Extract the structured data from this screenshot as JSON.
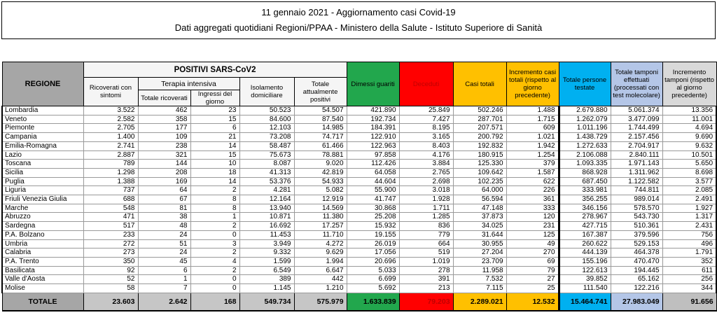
{
  "title": {
    "line1": "11 gennaio 2021 - Aggiornamento casi Covid-19",
    "line2": "Dati aggregati quotidiani Regioni/PPAA - Ministero della Salute - Istituto Superiore di Sanità"
  },
  "colors": {
    "green": "#22a74d",
    "red": "#ff0000",
    "dark-red": "#c00000",
    "yellow": "#ffc000",
    "cyan": "#00b0f0",
    "periwinkle": "#b4c6e7",
    "gray-light": "#d9d9d9",
    "gray-mid": "#a6a6a6",
    "gray-head": "#f5f5f5"
  },
  "table": {
    "region_header": "REGIONE",
    "group_positivi": "POSITIVI SARS-CoV2",
    "group_terapia": "Terapia intensiva",
    "cols": {
      "ricoverati": "Ricoverati con sintomi",
      "ti_totale": "Totale ricoverati",
      "ti_ingressi": "Ingressi del giorno",
      "isolamento": "Isolamento domiciliare",
      "attualmente_positivi": "Totale attualmente positivi",
      "dimessi": "Dimessi guariti",
      "deceduti": "Deceduti",
      "casi_totali": "Casi totali",
      "incremento_casi": "Incremento casi totali (rispetto al giorno precedente)",
      "persone_testate": "Totale persone testate",
      "tamponi": "Totale tamponi effettuati (processati con test molecolare)",
      "incremento_tamponi": "Incremento tamponi (rispetto al giorno precedente)"
    },
    "col_keys": [
      "ricoverati-sintomi",
      "ti-totale",
      "ti-ingressi",
      "isolamento",
      "attualmente-positivi",
      "dimessi-guariti",
      "deceduti",
      "casi-totali",
      "incremento-casi",
      "persone-testate",
      "tamponi",
      "incremento-tamponi"
    ],
    "rows": [
      {
        "regione": "Lombardia",
        "valori": [
          "3.522",
          "462",
          "23",
          "50.523",
          "54.507",
          "421.890",
          "25.849",
          "502.246",
          "1.488",
          "2.679.880",
          "5.061.374",
          "13.356"
        ]
      },
      {
        "regione": "Veneto",
        "valori": [
          "2.582",
          "358",
          "15",
          "84.600",
          "87.540",
          "192.734",
          "7.427",
          "287.701",
          "1.715",
          "1.262.079",
          "3.477.099",
          "11.001"
        ]
      },
      {
        "regione": "Piemonte",
        "valori": [
          "2.705",
          "177",
          "6",
          "12.103",
          "14.985",
          "184.391",
          "8.195",
          "207.571",
          "609",
          "1.011.196",
          "1.744.499",
          "4.694"
        ]
      },
      {
        "regione": "Campania",
        "valori": [
          "1.400",
          "109",
          "21",
          "73.208",
          "74.717",
          "122.910",
          "3.165",
          "200.792",
          "1.021",
          "1.438.729",
          "2.157.456",
          "9.690"
        ]
      },
      {
        "regione": "Emilia-Romagna",
        "valori": [
          "2.741",
          "238",
          "14",
          "58.487",
          "61.466",
          "122.963",
          "8.403",
          "192.832",
          "1.942",
          "1.272.633",
          "2.704.917",
          "9.632"
        ]
      },
      {
        "regione": "Lazio",
        "valori": [
          "2.887",
          "321",
          "15",
          "75.673",
          "78.881",
          "97.858",
          "4.176",
          "180.915",
          "1.254",
          "2.106.088",
          "2.840.111",
          "10.501"
        ]
      },
      {
        "regione": "Toscana",
        "valori": [
          "789",
          "144",
          "10",
          "8.087",
          "9.020",
          "112.426",
          "3.884",
          "125.330",
          "379",
          "1.093.335",
          "1.971.143",
          "5.650"
        ]
      },
      {
        "regione": "Sicilia",
        "valori": [
          "1.298",
          "208",
          "18",
          "41.313",
          "42.819",
          "64.058",
          "2.765",
          "109.642",
          "1.587",
          "868.928",
          "1.311.962",
          "8.698"
        ]
      },
      {
        "regione": "Puglia",
        "valori": [
          "1.388",
          "169",
          "14",
          "53.376",
          "54.933",
          "44.604",
          "2.698",
          "102.235",
          "622",
          "687.450",
          "1.122.582",
          "3.577"
        ]
      },
      {
        "regione": "Liguria",
        "valori": [
          "737",
          "64",
          "2",
          "4.281",
          "5.082",
          "55.900",
          "3.018",
          "64.000",
          "226",
          "333.981",
          "744.811",
          "2.085"
        ]
      },
      {
        "regione": "Friuli Venezia Giulia",
        "valori": [
          "688",
          "67",
          "8",
          "12.164",
          "12.919",
          "41.747",
          "1.928",
          "56.594",
          "361",
          "356.255",
          "989.014",
          "2.491"
        ]
      },
      {
        "regione": "Marche",
        "valori": [
          "548",
          "81",
          "8",
          "13.940",
          "14.569",
          "30.868",
          "1.711",
          "47.148",
          "333",
          "346.156",
          "578.570",
          "1.927"
        ]
      },
      {
        "regione": "Abruzzo",
        "valori": [
          "471",
          "38",
          "1",
          "10.871",
          "11.380",
          "25.208",
          "1.285",
          "37.873",
          "120",
          "278.967",
          "543.730",
          "1.317"
        ]
      },
      {
        "regione": "Sardegna",
        "valori": [
          "517",
          "48",
          "2",
          "16.692",
          "17.257",
          "15.932",
          "836",
          "34.025",
          "231",
          "427.715",
          "510.361",
          "2.431"
        ]
      },
      {
        "regione": "P.A. Bolzano",
        "valori": [
          "233",
          "24",
          "0",
          "11.453",
          "11.710",
          "19.155",
          "779",
          "31.644",
          "125",
          "167.387",
          "379.596",
          "756"
        ]
      },
      {
        "regione": "Umbria",
        "valori": [
          "272",
          "51",
          "3",
          "3.949",
          "4.272",
          "26.019",
          "664",
          "30.955",
          "49",
          "260.622",
          "529.153",
          "496"
        ]
      },
      {
        "regione": "Calabria",
        "valori": [
          "273",
          "24",
          "2",
          "9.332",
          "9.629",
          "17.056",
          "519",
          "27.204",
          "270",
          "444.139",
          "464.378",
          "1.791"
        ]
      },
      {
        "regione": "P.A. Trento",
        "valori": [
          "350",
          "45",
          "4",
          "1.599",
          "1.994",
          "20.696",
          "1.019",
          "23.709",
          "69",
          "155.196",
          "470.470",
          "352"
        ]
      },
      {
        "regione": "Basilicata",
        "valori": [
          "92",
          "6",
          "2",
          "6.549",
          "6.647",
          "5.033",
          "278",
          "11.958",
          "79",
          "122.613",
          "194.445",
          "611"
        ]
      },
      {
        "regione": "Valle d'Aosta",
        "valori": [
          "52",
          "1",
          "0",
          "389",
          "442",
          "6.699",
          "391",
          "7.532",
          "27",
          "39.852",
          "65.162",
          "256"
        ]
      },
      {
        "regione": "Molise",
        "valori": [
          "58",
          "7",
          "0",
          "1.145",
          "1.210",
          "5.692",
          "213",
          "7.115",
          "25",
          "111.540",
          "122.216",
          "344"
        ]
      }
    ],
    "totale": {
      "label": "TOTALE",
      "valori": [
        "23.603",
        "2.642",
        "168",
        "549.734",
        "575.979",
        "1.633.839",
        "79.203",
        "2.289.021",
        "12.532",
        "15.464.741",
        "27.983.049",
        "91.656"
      ]
    }
  }
}
